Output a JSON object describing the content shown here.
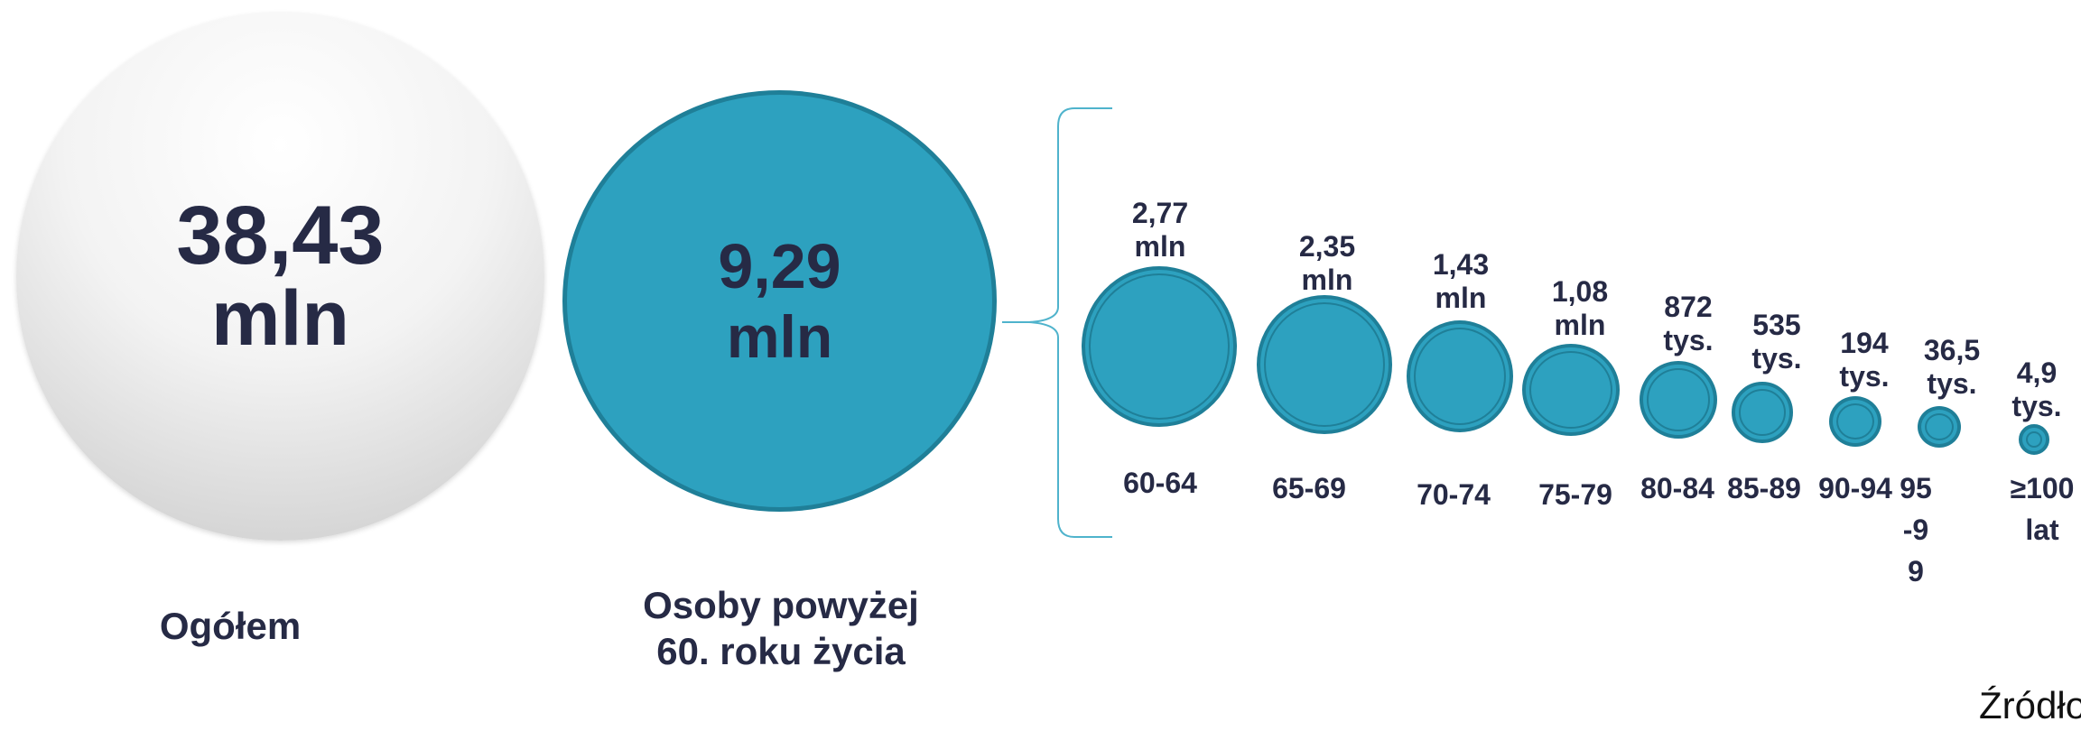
{
  "chart_data": {
    "type": "bubble",
    "total": {
      "value": "38,43",
      "unit": "mln",
      "label": "Ogółem"
    },
    "seniors": {
      "value": "9,29",
      "unit": "mln",
      "label": "Osoby powyżej 60. roku życia"
    },
    "groups": [
      {
        "category": "60-64",
        "value": 2.77,
        "unit": "mln",
        "label": "2,77 mln"
      },
      {
        "category": "65-69",
        "value": 2.35,
        "unit": "mln",
        "label": "2,35 mln"
      },
      {
        "category": "70-74",
        "value": 1.43,
        "unit": "mln",
        "label": "1,43 mln"
      },
      {
        "category": "75-79",
        "value": 1.08,
        "unit": "mln",
        "label": "1,08 mln"
      },
      {
        "category": "80-84",
        "value": 872,
        "unit": "tys.",
        "label": "872 tys."
      },
      {
        "category": "85-89",
        "value": 535,
        "unit": "tys.",
        "label": "535 tys."
      },
      {
        "category": "90-94",
        "value": 194,
        "unit": "tys.",
        "label": "194 tys."
      },
      {
        "category": "95-99",
        "value": 36.5,
        "unit": "tys.",
        "label": "36,5 tys."
      },
      {
        "category": "≥100 lat",
        "value": 4.9,
        "unit": "tys.",
        "label": "4,9 tys."
      }
    ]
  },
  "source_label": "Źródło",
  "colors": {
    "accent": "#2da1bf",
    "accent_border": "#1f7f98",
    "text": "#262a45",
    "bracket": "#4fb3cc"
  }
}
